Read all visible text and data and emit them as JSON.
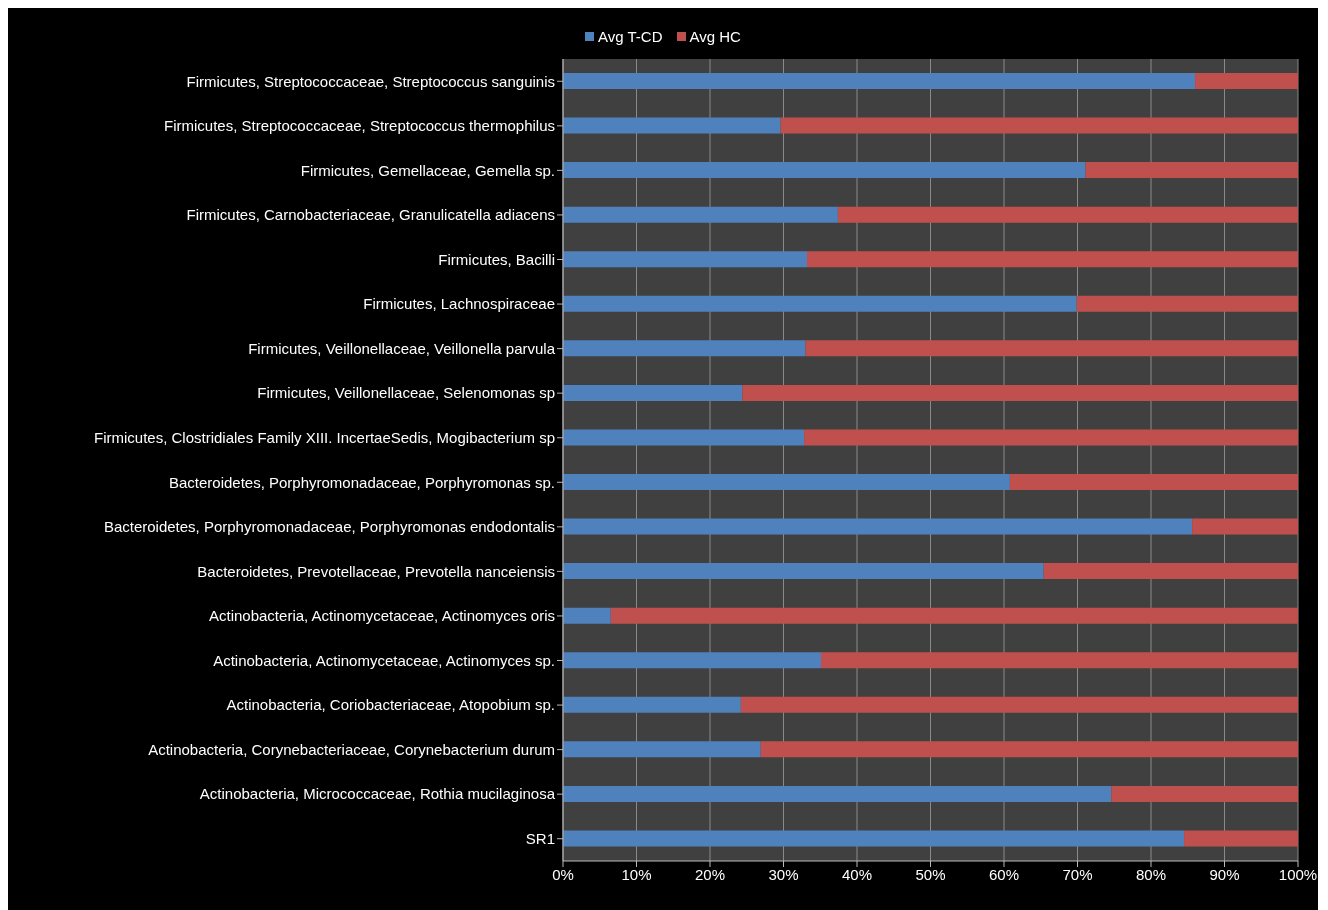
{
  "chart_data": {
    "type": "bar",
    "orientation": "horizontal",
    "stacked": true,
    "categories": [
      "Firmicutes, Streptococcaceae, Streptococcus sanguinis",
      "Firmicutes, Streptococcaceae, Streptococcus thermophilus",
      "Firmicutes, Gemellaceae,  Gemella sp.",
      "Firmicutes, Carnobacteriaceae, Granulicatella adiacens",
      "Firmicutes, Bacilli",
      "Firmicutes, Lachnospiraceae",
      "Firmicutes, Veillonellaceae,  Veillonella  parvula",
      "Firmicutes, Veillonellaceae,  Selenomonas sp",
      "Firmicutes, Clostridiales Family XIII. IncertaeSedis,  Mogibacterium sp",
      "Bacteroidetes, Porphyromonadaceae, Porphyromonas sp.",
      "Bacteroidetes, Porphyromonadaceae, Porphyromonas endodontalis",
      "Bacteroidetes, Prevotellaceae, Prevotella nanceiensis",
      "Actinobacteria, Actinomycetaceae, Actinomyces oris",
      "Actinobacteria, Actinomycetaceae, Actinomyces sp.",
      "Actinobacteria, Coriobacteriaceae, Atopobium sp.",
      "Actinobacteria, Corynebacteriaceae, Corynebacterium durum",
      "Actinobacteria, Micrococcaceae, Rothia mucilaginosa",
      "SR1"
    ],
    "series": [
      {
        "name": "Avg T-CD",
        "color": "#4f81bd",
        "values": [
          86,
          29.6,
          71.1,
          37.4,
          33.2,
          69.9,
          33,
          24.4,
          32.8,
          60.8,
          85.6,
          65.4,
          6.5,
          35.1,
          24.2,
          26.9,
          74.6,
          84.5
        ]
      },
      {
        "name": "Avg HC",
        "color": "#c0504d",
        "values": [
          14,
          70.4,
          28.9,
          62.6,
          66.8,
          30.1,
          67,
          75.6,
          67.2,
          39.2,
          14.4,
          34.6,
          93.5,
          64.9,
          75.8,
          73.1,
          25.4,
          15.5
        ]
      }
    ],
    "xlim": [
      0,
      100
    ],
    "xticks": [
      {
        "value": 0,
        "label": "0%"
      },
      {
        "value": 10,
        "label": "10%"
      },
      {
        "value": 20,
        "label": "20%"
      },
      {
        "value": 30,
        "label": "30%"
      },
      {
        "value": 40,
        "label": "40%"
      },
      {
        "value": 50,
        "label": "50%"
      },
      {
        "value": 60,
        "label": "60%"
      },
      {
        "value": 70,
        "label": "70%"
      },
      {
        "value": 80,
        "label": "80%"
      },
      {
        "value": 90,
        "label": "90%"
      },
      {
        "value": 100,
        "label": "100%"
      }
    ],
    "grid": "x",
    "legend": "top"
  }
}
